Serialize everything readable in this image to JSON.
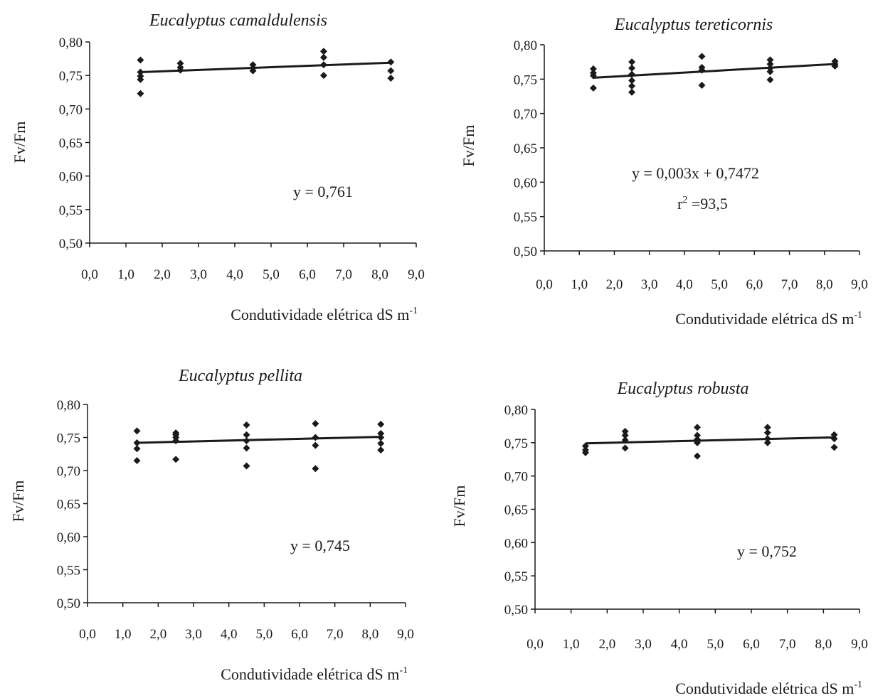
{
  "chart_data": [
    {
      "type": "scatter",
      "title": "Eucalyptus camaldulensis",
      "ylabel": "Fv/Fm",
      "xlabel": "Condutividade elétrica dS m",
      "xlabel_sup": "-1",
      "xlim": [
        0,
        9
      ],
      "ylim": [
        0.5,
        0.8
      ],
      "xticks": [
        "0,0",
        "1,0",
        "2,0",
        "3,0",
        "4,0",
        "5,0",
        "6,0",
        "7,0",
        "8,0",
        "9,0"
      ],
      "yticks": [
        "0,50",
        "0,55",
        "0,60",
        "0,65",
        "0,70",
        "0,75",
        "0,80"
      ],
      "equation": "y =  0,761",
      "r2_prefix": "",
      "r2_sup": "",
      "r2_value": "",
      "trend": [
        [
          1.4,
          0.755
        ],
        [
          8.3,
          0.769
        ]
      ],
      "points": [
        [
          1.4,
          0.773
        ],
        [
          1.4,
          0.755
        ],
        [
          1.4,
          0.749
        ],
        [
          1.4,
          0.744
        ],
        [
          1.4,
          0.723
        ],
        [
          2.5,
          0.768
        ],
        [
          2.5,
          0.762
        ],
        [
          2.5,
          0.758
        ],
        [
          4.5,
          0.766
        ],
        [
          4.5,
          0.761
        ],
        [
          4.5,
          0.757
        ],
        [
          6.45,
          0.786
        ],
        [
          6.45,
          0.777
        ],
        [
          6.45,
          0.766
        ],
        [
          6.45,
          0.75
        ],
        [
          8.3,
          0.77
        ],
        [
          8.3,
          0.757
        ],
        [
          8.3,
          0.746
        ]
      ],
      "grid": false,
      "legend": "none"
    },
    {
      "type": "scatter",
      "title": "Eucalyptus tereticornis",
      "ylabel": "Fv/Fm",
      "xlabel": "Condutividade elétrica dS m",
      "xlabel_sup": "-1",
      "xlim": [
        0,
        9
      ],
      "ylim": [
        0.5,
        0.8
      ],
      "xticks": [
        "0,0",
        "1,0",
        "2,0",
        "3,0",
        "4,0",
        "5,0",
        "6,0",
        "7,0",
        "8,0",
        "9,0"
      ],
      "yticks": [
        "0,50",
        "0,55",
        "0,60",
        "0,65",
        "0,70",
        "0,75",
        "0,80"
      ],
      "equation": "y = 0,003x + 0,7472",
      "r2_prefix": "r",
      "r2_sup": "2",
      "r2_value": " =93,5",
      "trend": [
        [
          1.4,
          0.752
        ],
        [
          8.3,
          0.772
        ]
      ],
      "points": [
        [
          1.4,
          0.765
        ],
        [
          1.4,
          0.759
        ],
        [
          1.4,
          0.755
        ],
        [
          1.4,
          0.737
        ],
        [
          2.5,
          0.775
        ],
        [
          2.5,
          0.766
        ],
        [
          2.5,
          0.757
        ],
        [
          2.5,
          0.748
        ],
        [
          2.5,
          0.74
        ],
        [
          2.5,
          0.731
        ],
        [
          4.5,
          0.783
        ],
        [
          4.5,
          0.767
        ],
        [
          4.5,
          0.763
        ],
        [
          4.5,
          0.741
        ],
        [
          6.45,
          0.778
        ],
        [
          6.45,
          0.772
        ],
        [
          6.45,
          0.766
        ],
        [
          6.45,
          0.761
        ],
        [
          6.45,
          0.749
        ],
        [
          8.3,
          0.776
        ],
        [
          8.3,
          0.772
        ],
        [
          8.3,
          0.769
        ]
      ],
      "grid": false,
      "legend": "none"
    },
    {
      "type": "scatter",
      "title": "Eucalyptus pellita",
      "ylabel": "Fv/Fm",
      "xlabel": "Condutividade elétrica dS m",
      "xlabel_sup": "-1",
      "xlim": [
        0,
        9
      ],
      "ylim": [
        0.5,
        0.8
      ],
      "xticks": [
        "0,0",
        "1,0",
        "2,0",
        "3,0",
        "4,0",
        "5,0",
        "6,0",
        "7,0",
        "8,0",
        "9,0"
      ],
      "yticks": [
        "0,50",
        "0,55",
        "0,60",
        "0,65",
        "0,70",
        "0,75",
        "0,80"
      ],
      "equation": "y =  0,745",
      "r2_prefix": "",
      "r2_sup": "",
      "r2_value": "",
      "trend": [
        [
          1.4,
          0.742
        ],
        [
          8.3,
          0.751
        ]
      ],
      "points": [
        [
          1.4,
          0.76
        ],
        [
          1.4,
          0.742
        ],
        [
          1.4,
          0.733
        ],
        [
          1.4,
          0.715
        ],
        [
          2.5,
          0.757
        ],
        [
          2.5,
          0.754
        ],
        [
          2.5,
          0.75
        ],
        [
          2.5,
          0.745
        ],
        [
          2.5,
          0.717
        ],
        [
          4.5,
          0.769
        ],
        [
          4.5,
          0.754
        ],
        [
          4.5,
          0.745
        ],
        [
          4.5,
          0.734
        ],
        [
          4.5,
          0.707
        ],
        [
          6.45,
          0.771
        ],
        [
          6.45,
          0.75
        ],
        [
          6.45,
          0.738
        ],
        [
          6.45,
          0.703
        ],
        [
          8.3,
          0.77
        ],
        [
          8.3,
          0.756
        ],
        [
          8.3,
          0.75
        ],
        [
          8.3,
          0.741
        ],
        [
          8.3,
          0.731
        ]
      ],
      "grid": false,
      "legend": "none"
    },
    {
      "type": "scatter",
      "title": "Eucalyptus robusta",
      "ylabel": "Fv/Fm",
      "xlabel": "Condutividade elétrica dS m",
      "xlabel_sup": "-1",
      "xlim": [
        0,
        9
      ],
      "ylim": [
        0.5,
        0.8
      ],
      "xticks": [
        "0,0",
        "1,0",
        "2,0",
        "3,0",
        "4,0",
        "5,0",
        "6,0",
        "7,0",
        "8,0",
        "9,0"
      ],
      "yticks": [
        "0,50",
        "0,55",
        "0,60",
        "0,65",
        "0,70",
        "0,75",
        "0,80"
      ],
      "equation": "y = 0,752",
      "r2_prefix": "",
      "r2_sup": "",
      "r2_value": "",
      "trend": [
        [
          1.4,
          0.749
        ],
        [
          8.3,
          0.758
        ]
      ],
      "points": [
        [
          1.4,
          0.745
        ],
        [
          1.4,
          0.739
        ],
        [
          1.4,
          0.735
        ],
        [
          2.5,
          0.767
        ],
        [
          2.5,
          0.761
        ],
        [
          2.5,
          0.754
        ],
        [
          2.5,
          0.742
        ],
        [
          4.5,
          0.773
        ],
        [
          4.5,
          0.761
        ],
        [
          4.5,
          0.755
        ],
        [
          4.5,
          0.75
        ],
        [
          4.5,
          0.73
        ],
        [
          6.45,
          0.773
        ],
        [
          6.45,
          0.765
        ],
        [
          6.45,
          0.756
        ],
        [
          6.45,
          0.75
        ],
        [
          8.3,
          0.762
        ],
        [
          8.3,
          0.756
        ],
        [
          8.3,
          0.743
        ]
      ],
      "grid": false,
      "legend": "none"
    }
  ]
}
